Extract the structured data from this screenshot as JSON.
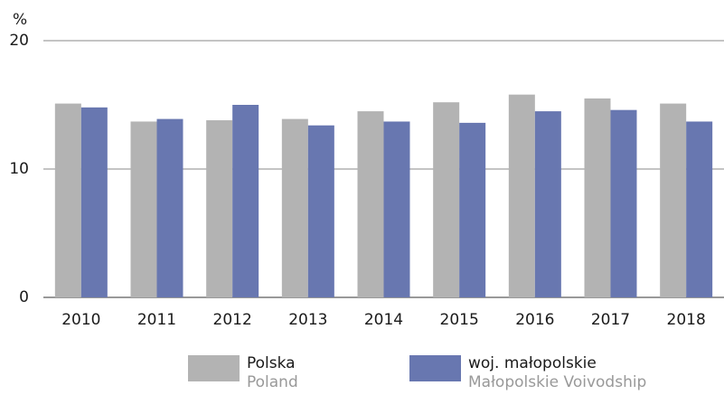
{
  "chart_data": {
    "type": "bar",
    "y_unit": "%",
    "categories": [
      "2010",
      "2011",
      "2012",
      "2013",
      "2014",
      "2015",
      "2016",
      "2017",
      "2018"
    ],
    "series": [
      {
        "name": "Polska",
        "name_en": "Poland",
        "color": "#b3b3b3",
        "values": [
          15.1,
          13.7,
          13.8,
          13.9,
          14.5,
          15.2,
          15.8,
          15.5,
          15.1
        ]
      },
      {
        "name": "woj. małopolskie",
        "name_en": "Małopolskie Voivodship",
        "color": "#6877b0",
        "values": [
          14.8,
          13.9,
          15.0,
          13.4,
          13.7,
          13.6,
          14.5,
          14.6,
          13.7
        ]
      }
    ],
    "ylim": [
      0,
      20
    ],
    "yticks": [
      0,
      10,
      20
    ],
    "grid": true
  }
}
